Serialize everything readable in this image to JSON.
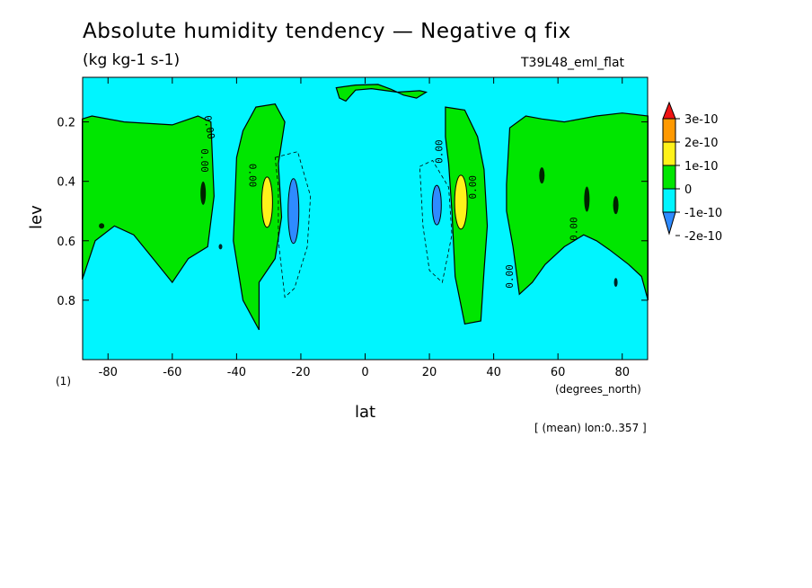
{
  "header": {
    "title": "Absolute humidity tendency — Negative q fix",
    "units": "(kg kg-1 s-1)",
    "run": "T39L48_eml_flat",
    "footnote": "[ (mean) lon:0..357 ]",
    "x_unit": "(degrees_north)",
    "y_unit": "(1)"
  },
  "chart_data": {
    "type": "heatmap",
    "xlabel": "lat",
    "ylabel": "lev",
    "xlim": [
      -87.9,
      87.9
    ],
    "ylim": [
      1.0,
      0.05
    ],
    "x_ticks": [
      -80,
      -60,
      -40,
      -20,
      0,
      20,
      40,
      60,
      80
    ],
    "x_tick_labels": [
      "-80",
      "-60",
      "-40",
      "-20",
      "0",
      "20",
      "40",
      "60",
      "80"
    ],
    "y_ticks": [
      0.2,
      0.4,
      0.6,
      0.8
    ],
    "y_tick_labels": [
      "0.2",
      "0.4",
      "0.6",
      "0.8"
    ],
    "contour_labels": [
      "0.00"
    ],
    "colorbar": {
      "labels": [
        "3e-10",
        "2e-10",
        "1e-10",
        "0",
        "-1e-10",
        "-2e-10"
      ],
      "levels": [
        -2e-10,
        -1e-10,
        0,
        1e-10,
        2e-10,
        3e-10
      ],
      "colors": [
        "#2e8bff",
        "#00f5ff",
        "#00e600",
        "#fff21a",
        "#ff9900",
        "#f01414"
      ]
    },
    "regions": [
      {
        "level": "0 to 1e-10",
        "color": "#00e600",
        "lat": [
          -88,
          -48
        ],
        "lev": [
          0.18,
          0.75
        ]
      },
      {
        "level": "0 to 1e-10",
        "color": "#00e600",
        "lat": [
          -40,
          -25
        ],
        "lev": [
          0.15,
          0.9
        ]
      },
      {
        "level": "0 to 1e-10",
        "color": "#00e600",
        "lat": [
          25,
          40
        ],
        "lev": [
          0.15,
          0.9
        ]
      },
      {
        "level": "0 to 1e-10",
        "color": "#00e600",
        "lat": [
          44,
          88
        ],
        "lev": [
          0.18,
          0.8
        ]
      },
      {
        "level": "0 to 1e-10",
        "color": "#00e600",
        "lat": [
          -9,
          20
        ],
        "lev": [
          0.06,
          0.12
        ]
      },
      {
        "level": "1e-10 to 2e-10",
        "color": "#fff21a",
        "lat": [
          -32,
          -29
        ],
        "lev": [
          0.39,
          0.55
        ]
      },
      {
        "level": "1e-10 to 2e-10",
        "color": "#fff21a",
        "lat": [
          28,
          32
        ],
        "lev": [
          0.39,
          0.56
        ]
      },
      {
        "level": "-2e-10 to -1e-10",
        "color": "#2e8bff",
        "lat": [
          -24,
          -21
        ],
        "lev": [
          0.41,
          0.6
        ]
      },
      {
        "level": "-2e-10 to -1e-10",
        "color": "#2e8bff",
        "lat": [
          21,
          24
        ],
        "lev": [
          0.43,
          0.55
        ]
      }
    ]
  }
}
